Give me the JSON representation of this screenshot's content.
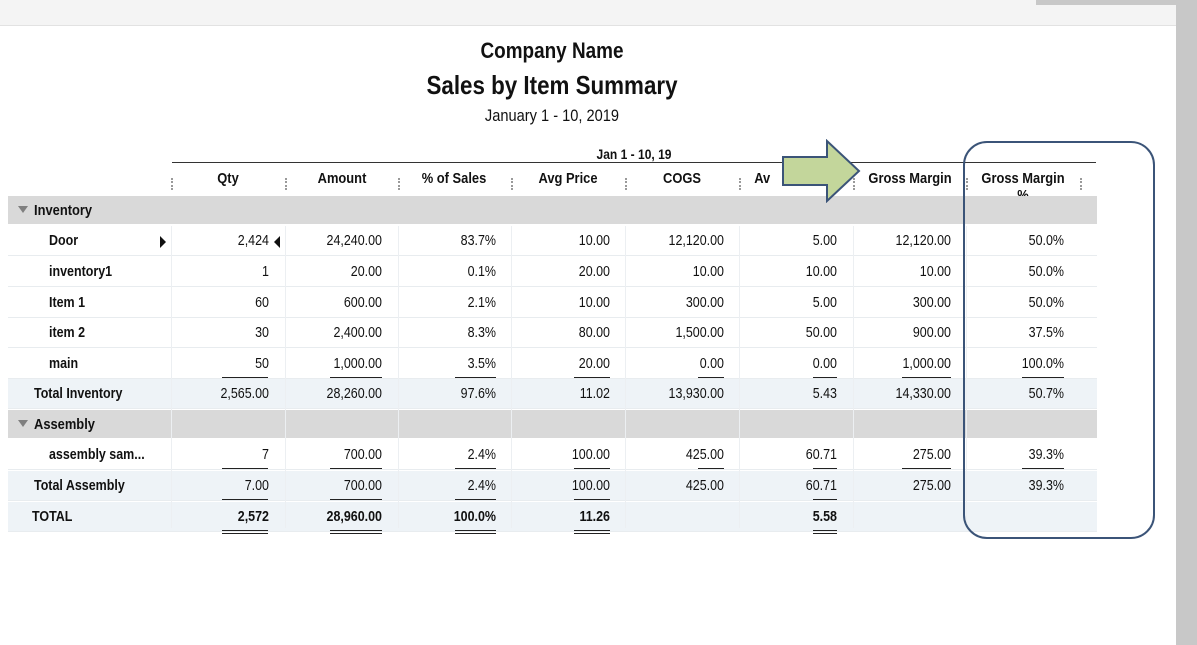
{
  "report": {
    "company": "Company Name",
    "title": "Sales by Item Summary",
    "date_range": "January 1 - 10, 2019",
    "period_label": "Jan 1 - 10, 19"
  },
  "columns": [
    "Qty",
    "Amount",
    "% of Sales",
    "Avg Price",
    "COGS",
    "Av",
    "Gross Margin",
    "Gross Margin %"
  ],
  "groups": {
    "inventory": {
      "label": "Inventory",
      "rows": [
        {
          "name": "Door",
          "qty": "2,424",
          "amount": "24,240.00",
          "pct": "83.7%",
          "avg_price": "10.00",
          "cogs": "12,120.00",
          "avg_cogs": "5.00",
          "gm": "12,120.00",
          "gm_pct": "50.0%"
        },
        {
          "name": "inventory1",
          "qty": "1",
          "amount": "20.00",
          "pct": "0.1%",
          "avg_price": "20.00",
          "cogs": "10.00",
          "avg_cogs": "10.00",
          "gm": "10.00",
          "gm_pct": "50.0%"
        },
        {
          "name": "Item 1",
          "qty": "60",
          "amount": "600.00",
          "pct": "2.1%",
          "avg_price": "10.00",
          "cogs": "300.00",
          "avg_cogs": "5.00",
          "gm": "300.00",
          "gm_pct": "50.0%"
        },
        {
          "name": "item 2",
          "qty": "30",
          "amount": "2,400.00",
          "pct": "8.3%",
          "avg_price": "80.00",
          "cogs": "1,500.00",
          "avg_cogs": "50.00",
          "gm": "900.00",
          "gm_pct": "37.5%"
        },
        {
          "name": "main",
          "qty": "50",
          "amount": "1,000.00",
          "pct": "3.5%",
          "avg_price": "20.00",
          "cogs": "0.00",
          "avg_cogs": "0.00",
          "gm": "1,000.00",
          "gm_pct": "100.0%"
        }
      ],
      "total": {
        "name": "Total Inventory",
        "qty": "2,565.00",
        "amount": "28,260.00",
        "pct": "97.6%",
        "avg_price": "11.02",
        "cogs": "13,930.00",
        "avg_cogs": "5.43",
        "gm": "14,330.00",
        "gm_pct": "50.7%"
      }
    },
    "assembly": {
      "label": "Assembly",
      "rows": [
        {
          "name": "assembly sam...",
          "qty": "7",
          "amount": "700.00",
          "pct": "2.4%",
          "avg_price": "100.00",
          "cogs": "425.00",
          "avg_cogs": "60.71",
          "gm": "275.00",
          "gm_pct": "39.3%"
        }
      ],
      "total": {
        "name": "Total Assembly",
        "qty": "7.00",
        "amount": "700.00",
        "pct": "2.4%",
        "avg_price": "100.00",
        "cogs": "425.00",
        "avg_cogs": "60.71",
        "gm": "275.00",
        "gm_pct": "39.3%"
      }
    }
  },
  "grand_total": {
    "name": "TOTAL",
    "qty": "2,572",
    "amount": "28,960.00",
    "pct": "100.0%",
    "avg_price": "11.26",
    "avg_cogs": "5.58"
  },
  "annotations": {
    "arrow_color": "#c3d69b",
    "callout_color": "#3b5478"
  }
}
